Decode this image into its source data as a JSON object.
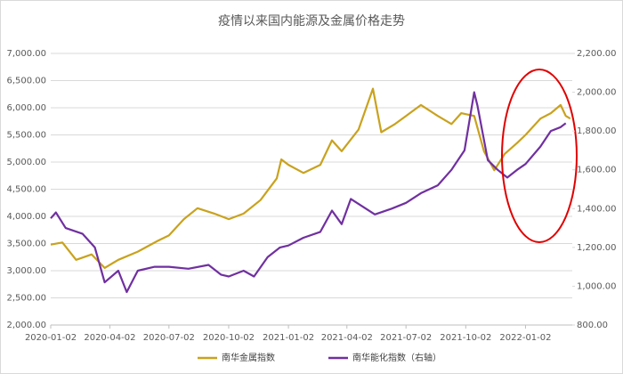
{
  "chart_data": {
    "type": "line",
    "title": "疫情以来国内能源及金属价格走势",
    "xlim": [
      "2020-01-02",
      "2022-03-15"
    ],
    "xticks": [
      "2020-01-02",
      "2020-04-02",
      "2020-07-02",
      "2020-10-02",
      "2021-01-02",
      "2021-04-02",
      "2021-07-02",
      "2021-10-02",
      "2022-01-02"
    ],
    "ylim": [
      2000,
      7000
    ],
    "yticks": [
      {
        "value": 2000,
        "label": "2,000.00"
      },
      {
        "value": 2500,
        "label": "2,500.00"
      },
      {
        "value": 3000,
        "label": "3,000.00"
      },
      {
        "value": 3500,
        "label": "3,500.00"
      },
      {
        "value": 4000,
        "label": "4,000.00"
      },
      {
        "value": 4500,
        "label": "4,500.00"
      },
      {
        "value": 5000,
        "label": "5,000.00"
      },
      {
        "value": 5500,
        "label": "5,500.00"
      },
      {
        "value": 6000,
        "label": "6,000.00"
      },
      {
        "value": 6500,
        "label": "6,500.00"
      },
      {
        "value": 7000,
        "label": "7,000.00"
      }
    ],
    "y2lim": [
      800,
      2200
    ],
    "y2ticks": [
      {
        "value": 800,
        "label": "800.00"
      },
      {
        "value": 1000,
        "label": "1,000.00"
      },
      {
        "value": 1200,
        "label": "1,200.00"
      },
      {
        "value": 1400,
        "label": "1,400.00"
      },
      {
        "value": 1600,
        "label": "1,600.00"
      },
      {
        "value": 1800,
        "label": "1,800.00"
      },
      {
        "value": 2000,
        "label": "2,000.00"
      },
      {
        "value": 2200,
        "label": "2,200.00"
      }
    ],
    "grid": true,
    "legend": "bottom",
    "series": [
      {
        "name": "南华金属指数",
        "color": "#c9a21e",
        "x": [
          "2020-01-02",
          "2020-01-20",
          "2020-02-10",
          "2020-03-05",
          "2020-03-25",
          "2020-04-15",
          "2020-05-15",
          "2020-06-15",
          "2020-07-02",
          "2020-07-25",
          "2020-08-15",
          "2020-09-10",
          "2020-10-02",
          "2020-10-25",
          "2020-11-20",
          "2020-12-15",
          "2020-12-22",
          "2021-01-02",
          "2021-01-25",
          "2021-02-20",
          "2021-03-10",
          "2021-03-25",
          "2021-04-20",
          "2021-05-12",
          "2021-05-25",
          "2021-06-15",
          "2021-07-02",
          "2021-07-25",
          "2021-08-20",
          "2021-09-10",
          "2021-09-25",
          "2021-10-15",
          "2021-10-30",
          "2021-11-15",
          "2021-12-01",
          "2021-12-20",
          "2022-01-02",
          "2022-01-25",
          "2022-02-10",
          "2022-02-25",
          "2022-03-05",
          "2022-03-12"
        ],
        "values": [
          3480,
          3520,
          3200,
          3300,
          3050,
          3200,
          3350,
          3550,
          3650,
          3950,
          4150,
          4050,
          3950,
          4050,
          4300,
          4700,
          5050,
          4950,
          4800,
          4950,
          5400,
          5200,
          5600,
          6350,
          5550,
          5700,
          5850,
          6050,
          5850,
          5700,
          5900,
          5850,
          5200,
          4850,
          5150,
          5350,
          5500,
          5800,
          5900,
          6050,
          5850,
          5800
        ]
      },
      {
        "name": "南华能化指数（右轴）",
        "color": "#7030a0",
        "axis": "y2",
        "x": [
          "2020-01-02",
          "2020-01-10",
          "2020-01-25",
          "2020-02-20",
          "2020-03-10",
          "2020-03-25",
          "2020-04-15",
          "2020-04-28",
          "2020-05-15",
          "2020-06-10",
          "2020-07-02",
          "2020-08-01",
          "2020-09-01",
          "2020-09-20",
          "2020-10-02",
          "2020-10-25",
          "2020-11-10",
          "2020-12-01",
          "2020-12-20",
          "2021-01-02",
          "2021-01-25",
          "2021-02-20",
          "2021-03-10",
          "2021-03-25",
          "2021-04-08",
          "2021-05-15",
          "2021-06-10",
          "2021-07-02",
          "2021-07-25",
          "2021-08-20",
          "2021-09-10",
          "2021-09-30",
          "2021-10-15",
          "2021-10-20",
          "2021-11-05",
          "2021-11-20",
          "2021-12-05",
          "2021-12-20",
          "2022-01-02",
          "2022-01-25",
          "2022-02-10",
          "2022-02-25",
          "2022-03-05"
        ],
        "values": [
          1350,
          1380,
          1300,
          1270,
          1200,
          1020,
          1080,
          970,
          1080,
          1100,
          1100,
          1090,
          1110,
          1060,
          1050,
          1080,
          1050,
          1150,
          1200,
          1210,
          1250,
          1280,
          1390,
          1320,
          1450,
          1370,
          1400,
          1430,
          1480,
          1520,
          1600,
          1700,
          2000,
          1930,
          1650,
          1600,
          1560,
          1600,
          1630,
          1720,
          1800,
          1820,
          1840
        ]
      }
    ]
  }
}
